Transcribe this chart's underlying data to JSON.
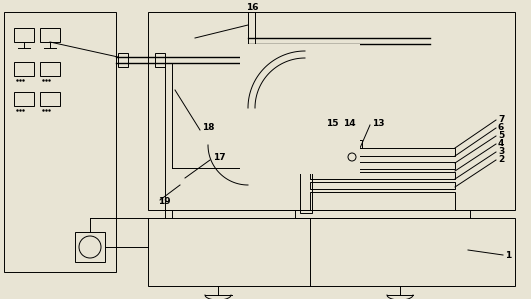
{
  "bg_color": "#e8e4d4",
  "line_color": "#000000",
  "figsize": [
    5.31,
    2.99
  ],
  "dpi": 100,
  "lw": 0.7
}
